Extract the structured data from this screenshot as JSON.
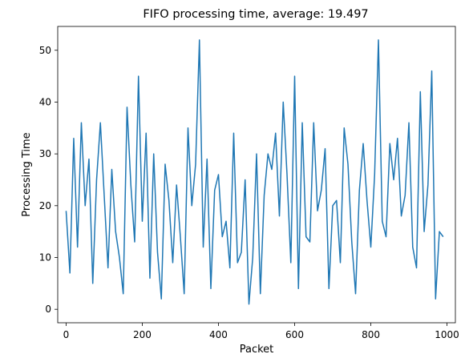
{
  "chart_data": {
    "type": "line",
    "title": "FIFO processing time, average: 19.497",
    "xlabel": "Packet",
    "ylabel": "Processing Time",
    "xlim": [
      -22,
      1022
    ],
    "ylim": [
      -2.6,
      54.6
    ],
    "xticks": [
      0,
      200,
      400,
      600,
      800,
      1000
    ],
    "yticks": [
      0,
      10,
      20,
      30,
      40,
      50
    ],
    "grid": false,
    "series": [
      {
        "name": "processing time",
        "color": "#1f77b4",
        "x_start": 0,
        "x_step": 10,
        "y": [
          19,
          7,
          33,
          12,
          36,
          20,
          29,
          5,
          25,
          36,
          22,
          8,
          27,
          15,
          10,
          3,
          39,
          24,
          13,
          45,
          17,
          34,
          6,
          30,
          11,
          2,
          28,
          21,
          9,
          24,
          14,
          3,
          35,
          20,
          28,
          52,
          12,
          29,
          4,
          23,
          26,
          14,
          17,
          8,
          34,
          9,
          11,
          25,
          1,
          10,
          30,
          3,
          22,
          30,
          27,
          34,
          18,
          40,
          26,
          9,
          45,
          4,
          36,
          14,
          13,
          36,
          19,
          23,
          31,
          4,
          20,
          21,
          9,
          35,
          28,
          13,
          3,
          23,
          32,
          21,
          12,
          26,
          52,
          17,
          14,
          32,
          25,
          33,
          18,
          22,
          36,
          12,
          8,
          42,
          15,
          24,
          46,
          2,
          15,
          14
        ]
      }
    ]
  }
}
